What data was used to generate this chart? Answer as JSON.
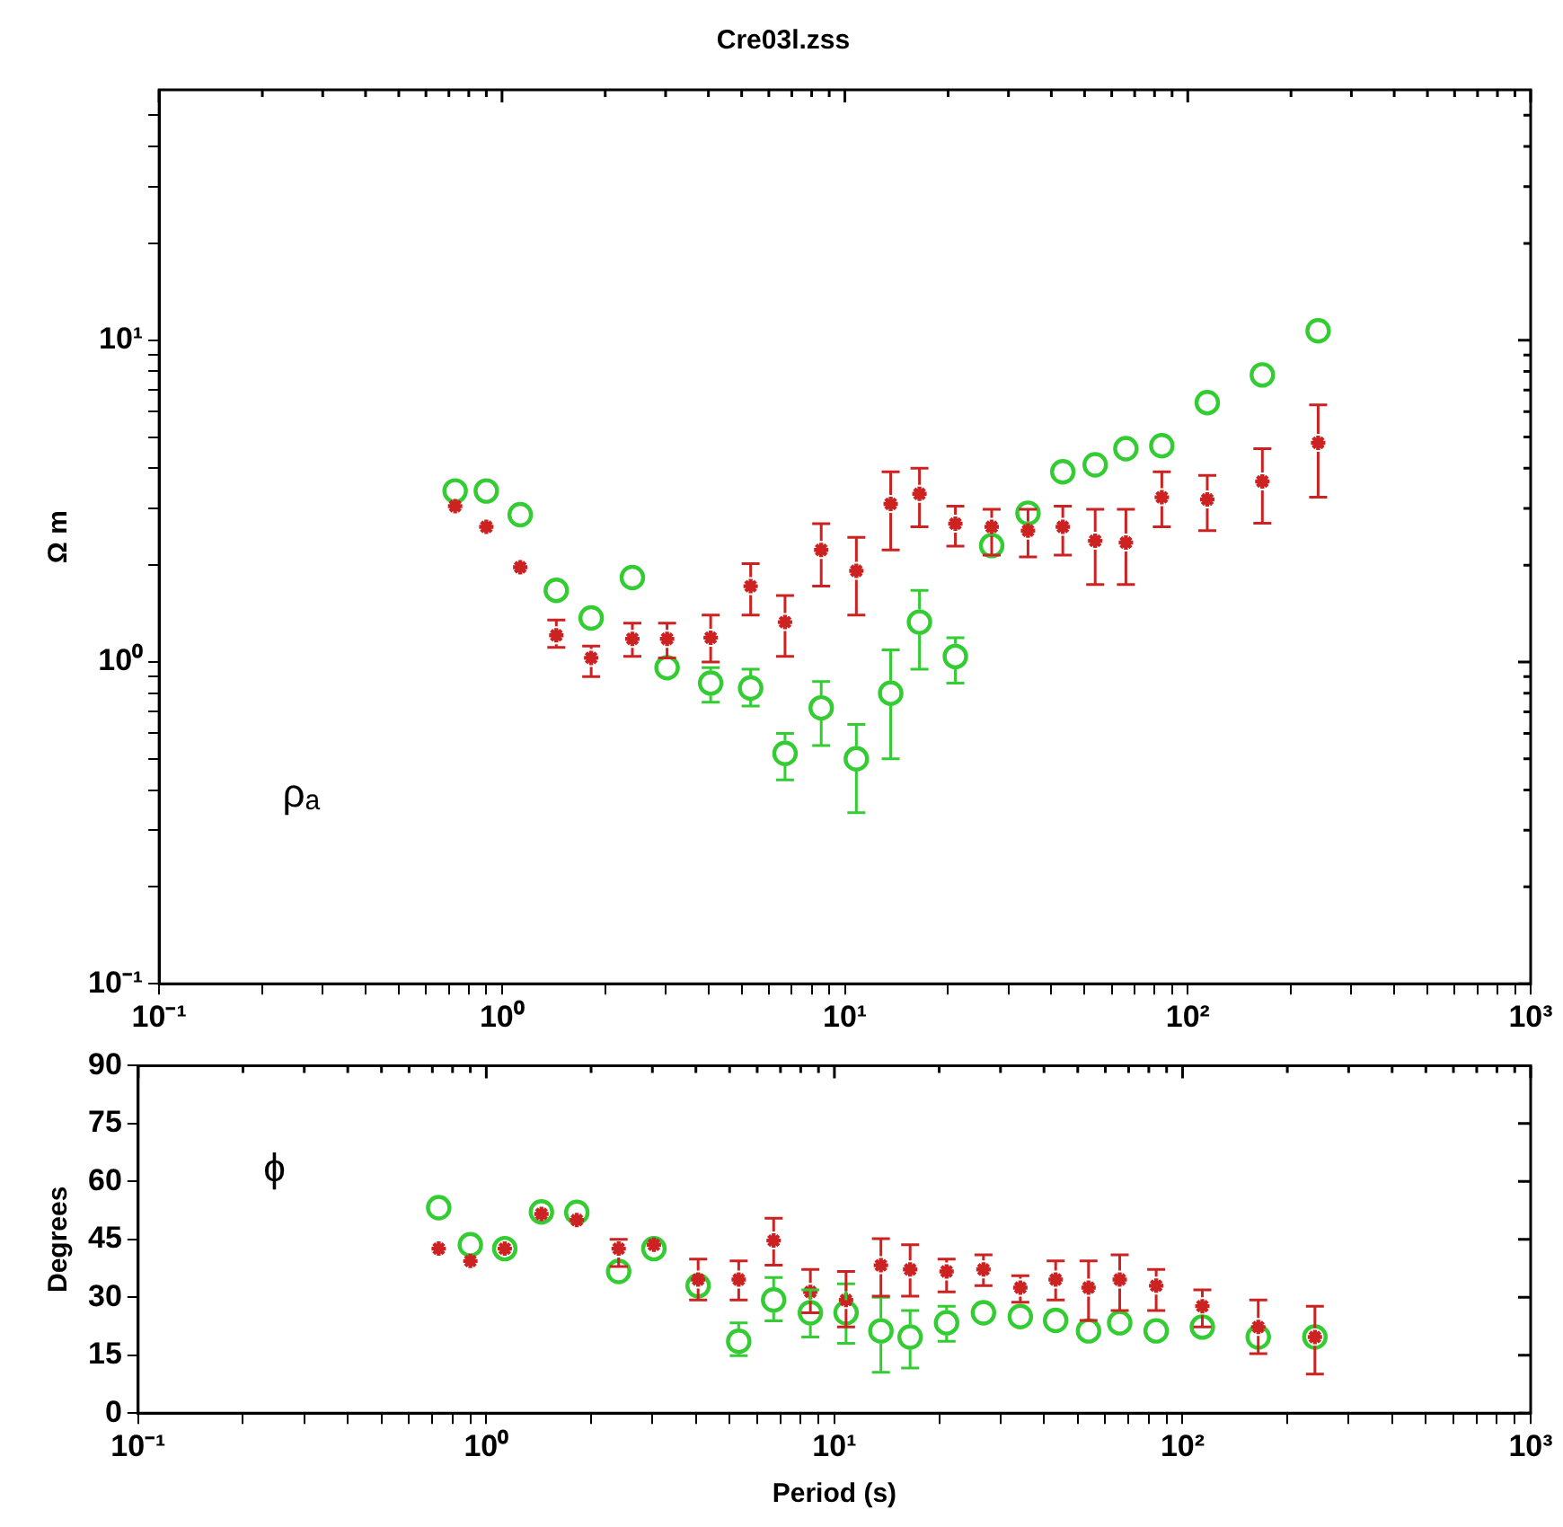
{
  "chart_data": [
    {
      "type": "scatter",
      "title": "Cre03l.zss",
      "ylabel": "Ω m",
      "log": "xy",
      "grid": false,
      "legend": false,
      "x": [
        0.73,
        0.9,
        1.13,
        1.44,
        1.82,
        2.4,
        3.03,
        4.06,
        5.31,
        6.69,
        8.53,
        10.8,
        13.6,
        16.5,
        21.0,
        26.8,
        34.2,
        43.2,
        53.7,
        66,
        84,
        114,
        165,
        240
      ],
      "xlim": [
        0.1,
        1000
      ],
      "xticks": [
        {
          "value": 0.1,
          "label": "10⁻¹"
        },
        {
          "value": 0.2,
          "label": null
        },
        {
          "value": 0.3,
          "label": null
        },
        {
          "value": 0.4,
          "label": null
        },
        {
          "value": 0.5,
          "label": null
        },
        {
          "value": 0.6,
          "label": null
        },
        {
          "value": 0.7,
          "label": null
        },
        {
          "value": 0.8,
          "label": null
        },
        {
          "value": 0.9,
          "label": null
        },
        {
          "value": 1,
          "label": "10⁰"
        },
        {
          "value": 2,
          "label": null
        },
        {
          "value": 3,
          "label": null
        },
        {
          "value": 4,
          "label": null
        },
        {
          "value": 5,
          "label": null
        },
        {
          "value": 6,
          "label": null
        },
        {
          "value": 7,
          "label": null
        },
        {
          "value": 8,
          "label": null
        },
        {
          "value": 9,
          "label": null
        },
        {
          "value": 10,
          "label": "10¹"
        },
        {
          "value": 20,
          "label": null
        },
        {
          "value": 30,
          "label": null
        },
        {
          "value": 40,
          "label": null
        },
        {
          "value": 50,
          "label": null
        },
        {
          "value": 60,
          "label": null
        },
        {
          "value": 70,
          "label": null
        },
        {
          "value": 80,
          "label": null
        },
        {
          "value": 90,
          "label": null
        },
        {
          "value": 100,
          "label": "10²"
        },
        {
          "value": 200,
          "label": null
        },
        {
          "value": 300,
          "label": null
        },
        {
          "value": 400,
          "label": null
        },
        {
          "value": 500,
          "label": null
        },
        {
          "value": 600,
          "label": null
        },
        {
          "value": 700,
          "label": null
        },
        {
          "value": 800,
          "label": null
        },
        {
          "value": 900,
          "label": null
        },
        {
          "value": 1000,
          "label": "10³"
        }
      ],
      "ylim": [
        0.1,
        60
      ],
      "yticks": [
        {
          "value": 0.1,
          "label": "10⁻¹"
        },
        {
          "value": 0.2,
          "label": null
        },
        {
          "value": 0.3,
          "label": null
        },
        {
          "value": 0.4,
          "label": null
        },
        {
          "value": 0.5,
          "label": null
        },
        {
          "value": 0.6,
          "label": null
        },
        {
          "value": 0.7,
          "label": null
        },
        {
          "value": 0.8,
          "label": null
        },
        {
          "value": 0.9,
          "label": null
        },
        {
          "value": 1,
          "label": "10⁰"
        },
        {
          "value": 2,
          "label": null
        },
        {
          "value": 3,
          "label": null
        },
        {
          "value": 4,
          "label": null
        },
        {
          "value": 5,
          "label": null
        },
        {
          "value": 6,
          "label": null
        },
        {
          "value": 7,
          "label": null
        },
        {
          "value": 8,
          "label": null
        },
        {
          "value": 9,
          "label": null
        },
        {
          "value": 10,
          "label": "10¹"
        },
        {
          "value": 20,
          "label": null
        },
        {
          "value": 30,
          "label": null
        },
        {
          "value": 40,
          "label": null
        },
        {
          "value": 50,
          "label": null
        }
      ],
      "annotations": [
        "ρₐ"
      ],
      "series": [
        {
          "color": "#33cc33",
          "marker": "circle",
          "values": [
            3.4,
            3.4,
            2.87,
            1.67,
            1.37,
            1.83,
            0.96,
            0.86,
            0.83,
            0.52,
            0.72,
            0.5,
            0.8,
            1.33,
            1.04,
            2.3,
            2.9,
            3.9,
            4.1,
            4.6,
            4.7,
            6.4,
            7.8,
            10.7
          ],
          "errors": [
            null,
            null,
            null,
            null,
            null,
            null,
            null,
            [
              0.75,
              0.96
            ],
            [
              0.73,
              0.95
            ],
            [
              0.43,
              0.6
            ],
            [
              0.55,
              0.87
            ],
            [
              0.34,
              0.64
            ],
            [
              0.5,
              1.09
            ],
            [
              0.95,
              1.67
            ],
            [
              0.86,
              1.19
            ],
            null,
            null,
            null,
            null,
            null,
            null,
            null,
            null,
            null
          ]
        },
        {
          "color": "#cc2222",
          "marker": "cross",
          "values": [
            3.05,
            2.63,
            1.97,
            1.21,
            1.03,
            1.18,
            1.18,
            1.19,
            1.72,
            1.33,
            2.23,
            1.92,
            3.1,
            3.33,
            2.69,
            2.63,
            2.56,
            2.63,
            2.38,
            2.35,
            3.25,
            3.2,
            3.64,
            4.8
          ],
          "errors": [
            null,
            null,
            null,
            [
              1.11,
              1.35
            ],
            [
              0.9,
              1.12
            ],
            [
              1.04,
              1.32
            ],
            [
              1.03,
              1.32
            ],
            [
              1.0,
              1.4
            ],
            [
              1.4,
              2.02
            ],
            [
              1.04,
              1.61
            ],
            [
              1.72,
              2.69
            ],
            [
              1.4,
              2.44
            ],
            [
              2.23,
              3.9
            ],
            [
              2.63,
              4.0
            ],
            [
              2.29,
              3.05
            ],
            [
              2.15,
              2.98
            ],
            [
              2.12,
              2.98
            ],
            [
              2.15,
              3.05
            ],
            [
              1.74,
              2.98
            ],
            [
              1.74,
              2.98
            ],
            [
              2.63,
              3.9
            ],
            [
              2.56,
              3.8
            ],
            [
              2.7,
              4.6
            ],
            [
              3.25,
              6.3
            ]
          ]
        }
      ]
    },
    {
      "type": "scatter",
      "xlabel": "Period (s)",
      "ylabel": "Degrees",
      "log": "x",
      "grid": false,
      "legend": false,
      "x": [
        0.73,
        0.9,
        1.13,
        1.44,
        1.82,
        2.4,
        3.03,
        4.06,
        5.31,
        6.69,
        8.53,
        10.8,
        13.6,
        16.5,
        21.0,
        26.8,
        34.2,
        43.2,
        53.7,
        66,
        84,
        114,
        165,
        240
      ],
      "xlim": [
        0.1,
        1000
      ],
      "xticks": [
        {
          "value": 0.1,
          "label": "10⁻¹"
        },
        {
          "value": 0.2,
          "label": null
        },
        {
          "value": 0.3,
          "label": null
        },
        {
          "value": 0.4,
          "label": null
        },
        {
          "value": 0.5,
          "label": null
        },
        {
          "value": 0.6,
          "label": null
        },
        {
          "value": 0.7,
          "label": null
        },
        {
          "value": 0.8,
          "label": null
        },
        {
          "value": 0.9,
          "label": null
        },
        {
          "value": 1,
          "label": "10⁰"
        },
        {
          "value": 2,
          "label": null
        },
        {
          "value": 3,
          "label": null
        },
        {
          "value": 4,
          "label": null
        },
        {
          "value": 5,
          "label": null
        },
        {
          "value": 6,
          "label": null
        },
        {
          "value": 7,
          "label": null
        },
        {
          "value": 8,
          "label": null
        },
        {
          "value": 9,
          "label": null
        },
        {
          "value": 10,
          "label": "10¹"
        },
        {
          "value": 20,
          "label": null
        },
        {
          "value": 30,
          "label": null
        },
        {
          "value": 40,
          "label": null
        },
        {
          "value": 50,
          "label": null
        },
        {
          "value": 60,
          "label": null
        },
        {
          "value": 70,
          "label": null
        },
        {
          "value": 80,
          "label": null
        },
        {
          "value": 90,
          "label": null
        },
        {
          "value": 100,
          "label": "10²"
        },
        {
          "value": 200,
          "label": null
        },
        {
          "value": 300,
          "label": null
        },
        {
          "value": 400,
          "label": null
        },
        {
          "value": 500,
          "label": null
        },
        {
          "value": 600,
          "label": null
        },
        {
          "value": 700,
          "label": null
        },
        {
          "value": 800,
          "label": null
        },
        {
          "value": 900,
          "label": null
        },
        {
          "value": 1000,
          "label": "10³"
        }
      ],
      "ylim": [
        0,
        90
      ],
      "yticks": [
        0,
        15,
        30,
        45,
        60,
        75,
        90
      ],
      "annotations": [
        "ϕ"
      ],
      "series": [
        {
          "color": "#33cc33",
          "marker": "circle",
          "values": [
            53.2,
            43.6,
            42.6,
            52.1,
            52,
            36.7,
            42.6,
            33,
            18.6,
            29.3,
            26,
            26,
            21.3,
            19.7,
            23.4,
            26,
            25,
            24,
            21.3,
            23.4,
            21.3,
            22.3,
            19.7,
            19.7
          ],
          "errors": [
            null,
            null,
            null,
            null,
            null,
            null,
            null,
            null,
            [
              14.9,
              23.4
            ],
            [
              23.9,
              35.1
            ],
            [
              19.7,
              31.9
            ],
            [
              18.1,
              33.5
            ],
            [
              10.6,
              30
            ],
            [
              11.7,
              26.6
            ],
            [
              18.6,
              27.7
            ],
            null,
            null,
            null,
            null,
            null,
            null,
            null,
            null,
            null
          ]
        },
        {
          "color": "#cc2222",
          "marker": "cross",
          "values": [
            42.6,
            39.4,
            42.6,
            51.6,
            50,
            42.6,
            43.6,
            34.6,
            34.6,
            44.7,
            31.4,
            29.3,
            38.3,
            37.2,
            36.7,
            37.2,
            32.5,
            34.6,
            32.5,
            34.6,
            33,
            27.7,
            22.3,
            19.7
          ],
          "errors": [
            null,
            null,
            null,
            null,
            null,
            [
              38,
              45
            ],
            null,
            [
              29.3,
              39.9
            ],
            [
              29.3,
              39.4
            ],
            [
              38.3,
              50.5
            ],
            [
              26,
              37.2
            ],
            [
              22.3,
              36.7
            ],
            [
              30.3,
              45.2
            ],
            [
              30.3,
              43.6
            ],
            [
              31.4,
              39.9
            ],
            [
              33,
              41
            ],
            [
              28.7,
              35.6
            ],
            [
              29.3,
              39.4
            ],
            [
              24,
              39.4
            ],
            [
              26.6,
              41
            ],
            [
              26.6,
              37.2
            ],
            [
              22.3,
              31.9
            ],
            [
              15.4,
              29.3
            ],
            [
              10.1,
              27.7
            ]
          ]
        }
      ]
    }
  ]
}
